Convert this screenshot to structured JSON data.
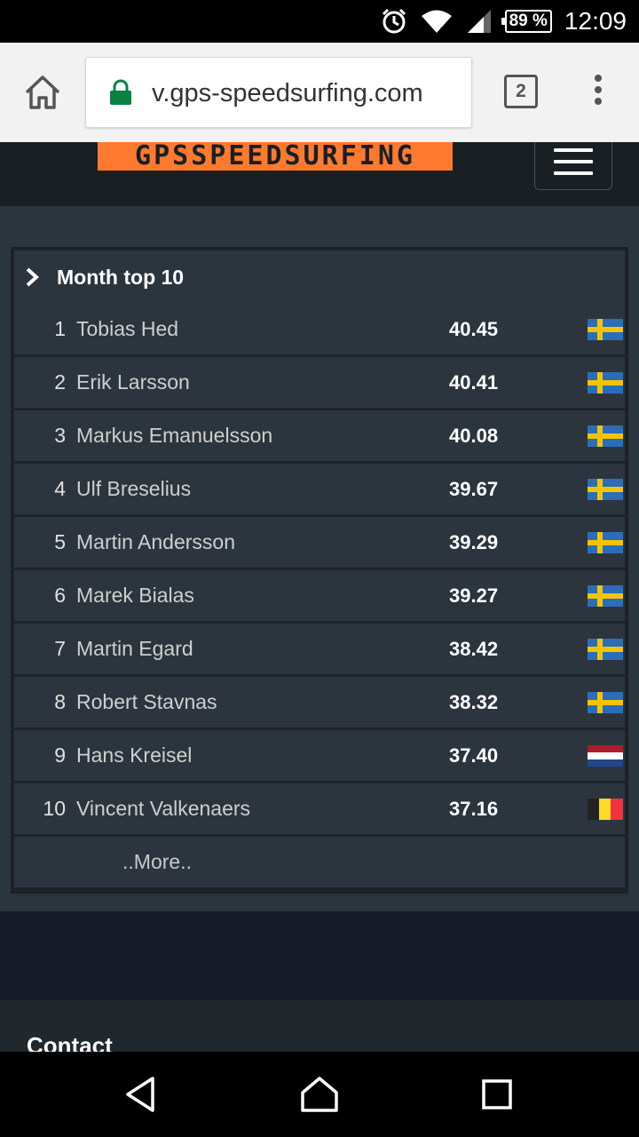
{
  "status_bar": {
    "battery": "89 %",
    "time": "12:09"
  },
  "browser": {
    "url": "v.gps-speedsurfing.com",
    "tab_count": "2"
  },
  "site": {
    "logo_text": "GPSSPEEDSURFING"
  },
  "panel": {
    "title": "Month top 10",
    "rows": [
      {
        "rank": "1",
        "name": "Tobias Hed",
        "speed": "40.45",
        "flag": "sweden"
      },
      {
        "rank": "2",
        "name": "Erik Larsson",
        "speed": "40.41",
        "flag": "sweden"
      },
      {
        "rank": "3",
        "name": "Markus Emanuelsson",
        "speed": "40.08",
        "flag": "sweden"
      },
      {
        "rank": "4",
        "name": "Ulf Breselius",
        "speed": "39.67",
        "flag": "sweden"
      },
      {
        "rank": "5",
        "name": "Martin Andersson",
        "speed": "39.29",
        "flag": "sweden"
      },
      {
        "rank": "6",
        "name": "Marek Bialas",
        "speed": "39.27",
        "flag": "sweden"
      },
      {
        "rank": "7",
        "name": "Martin Egard",
        "speed": "38.42",
        "flag": "sweden"
      },
      {
        "rank": "8",
        "name": "Robert Stavnas",
        "speed": "38.32",
        "flag": "sweden"
      },
      {
        "rank": "9",
        "name": "Hans Kreisel",
        "speed": "37.40",
        "flag": "netherlands"
      },
      {
        "rank": "10",
        "name": "Vincent Valkenaers",
        "speed": "37.16",
        "flag": "belgium"
      }
    ],
    "more_label": "..More.."
  },
  "footer": {
    "contact_label": "Contact"
  },
  "colors": {
    "accent": "#ff7a2e",
    "row_bg": "#2c353d",
    "page_bg": "#232a31"
  }
}
